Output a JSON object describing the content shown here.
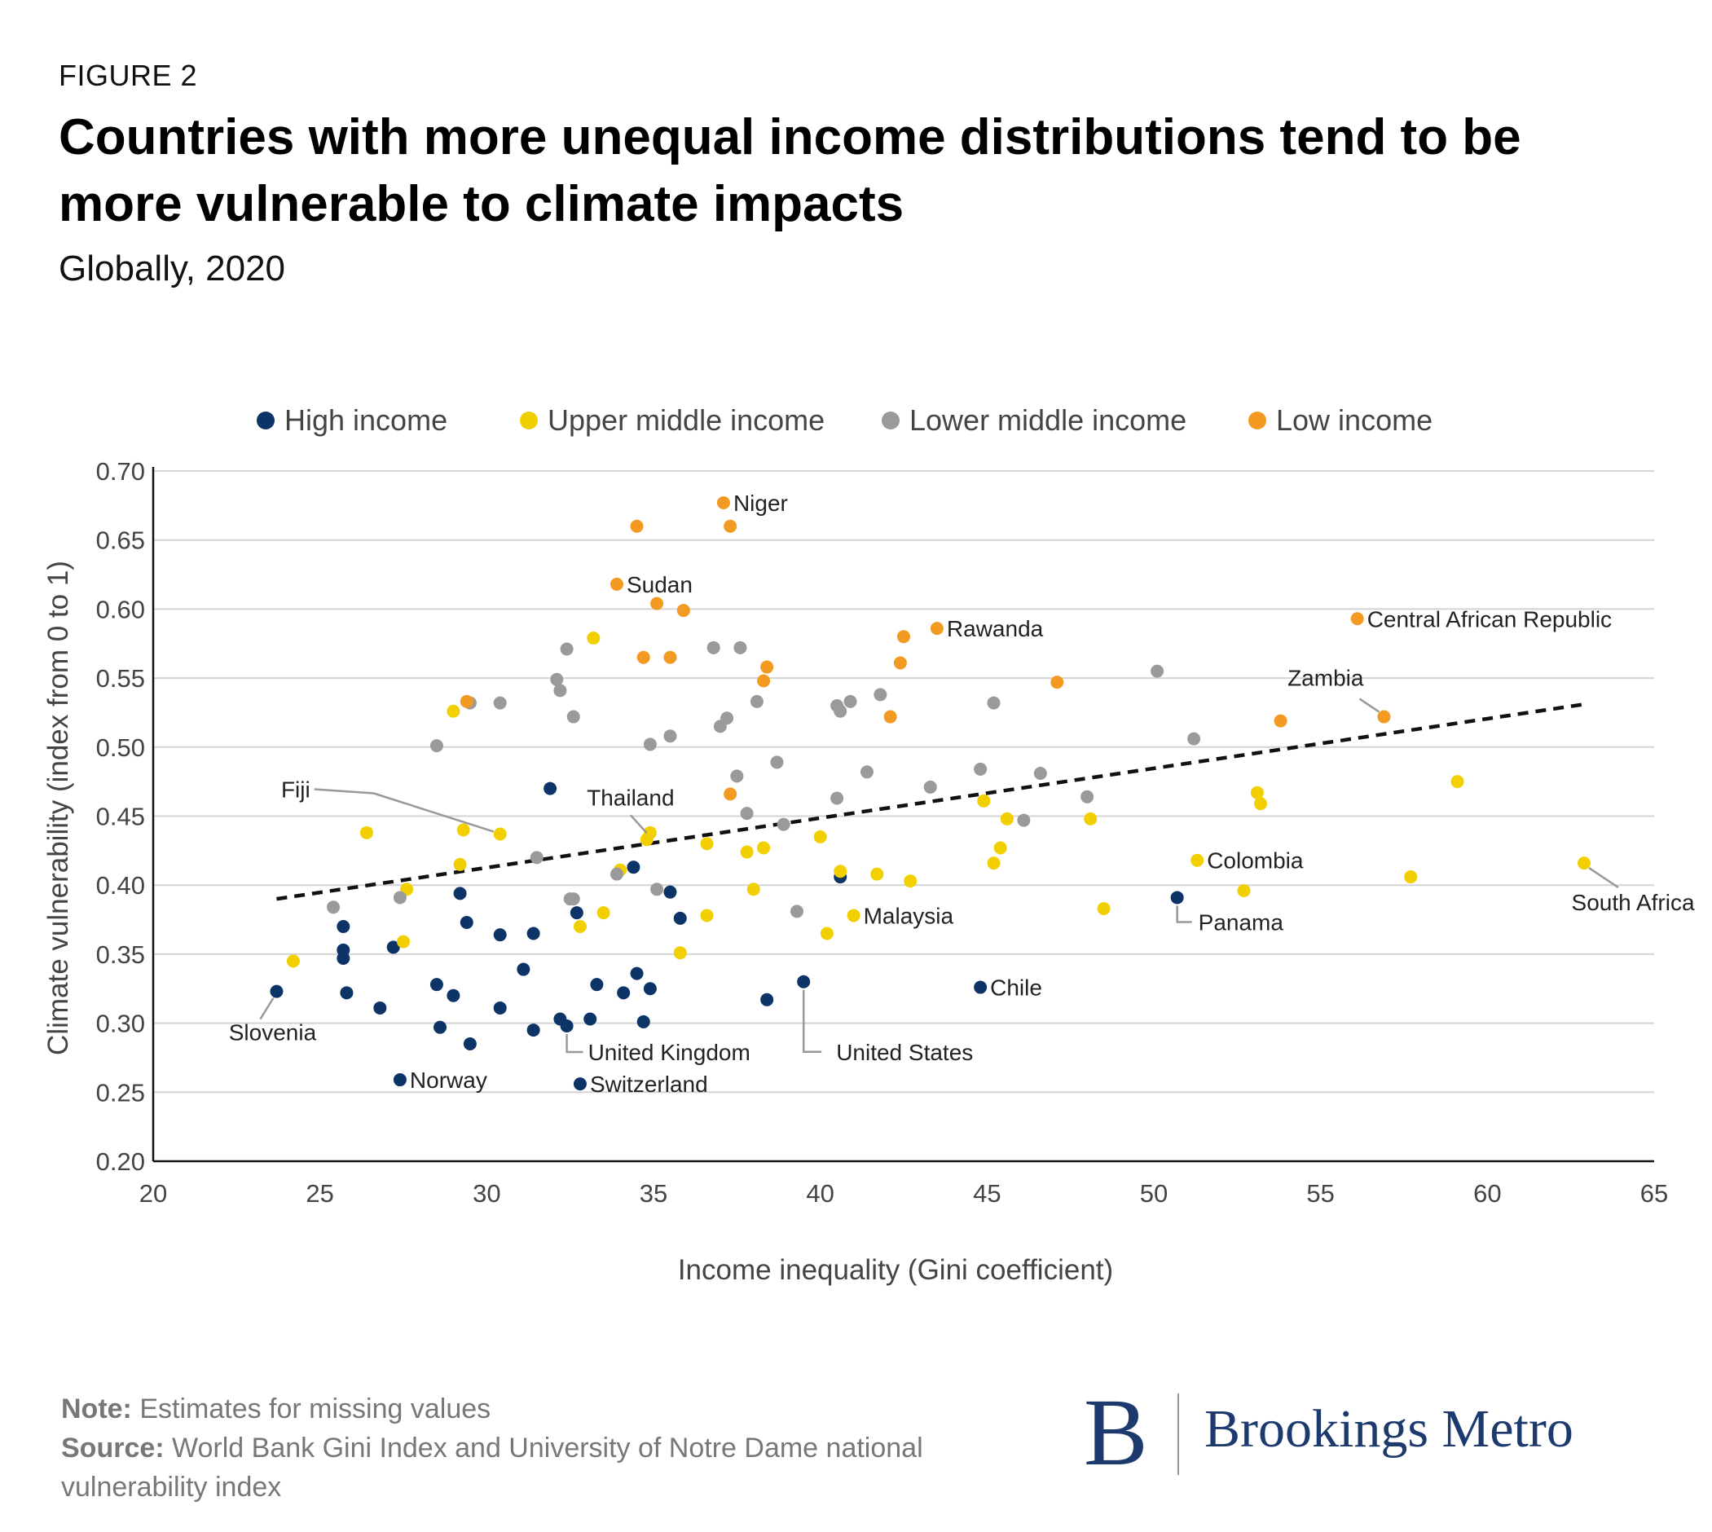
{
  "header": {
    "figure_label": "FIGURE 2",
    "title": "Countries with more unequal income distributions tend to be more vulnerable to climate impacts",
    "subtitle": "Globally, 2020"
  },
  "footer": {
    "note_label": "Note:",
    "note_text": "Estimates for missing values",
    "source_label": "Source:",
    "source_text": "World Bank Gini Index and University of Notre Dame national vulnerability index"
  },
  "brand": {
    "logo_letter": "B",
    "name": "Brookings Metro",
    "color": "#1d3a6e"
  },
  "chart_data": {
    "type": "scatter",
    "xlabel": "Income inequality (Gini coefficient)",
    "ylabel": "Climate vulnerability (index from 0 to 1)",
    "xlim": [
      20,
      65
    ],
    "ylim": [
      0.2,
      0.7
    ],
    "x_ticks": [
      20,
      25,
      30,
      35,
      40,
      45,
      50,
      55,
      60,
      65
    ],
    "y_ticks": [
      0.2,
      0.25,
      0.3,
      0.35,
      0.4,
      0.45,
      0.5,
      0.55,
      0.6,
      0.65,
      0.7
    ],
    "y_tick_labels": [
      "0.20",
      "0.25",
      "0.30",
      "0.35",
      "0.40",
      "0.45",
      "0.50",
      "0.55",
      "0.60",
      "0.65",
      "0.70"
    ],
    "grid": "horizontal",
    "legend_position": "top",
    "trendline": {
      "style": "dashed",
      "from": [
        23.7,
        0.39
      ],
      "to": [
        62.9,
        0.531
      ]
    },
    "series": [
      {
        "name": "High income",
        "color": "#0d3467",
        "points": [
          [
            23.7,
            0.323
          ],
          [
            25.7,
            0.37
          ],
          [
            25.7,
            0.353
          ],
          [
            25.7,
            0.347
          ],
          [
            25.8,
            0.322
          ],
          [
            26.8,
            0.311
          ],
          [
            27.2,
            0.355
          ],
          [
            27.4,
            0.259
          ],
          [
            28.5,
            0.328
          ],
          [
            28.6,
            0.297
          ],
          [
            29.0,
            0.32
          ],
          [
            29.2,
            0.394
          ],
          [
            29.4,
            0.373
          ],
          [
            29.5,
            0.285
          ],
          [
            30.4,
            0.364
          ],
          [
            30.4,
            0.311
          ],
          [
            31.1,
            0.339
          ],
          [
            31.4,
            0.365
          ],
          [
            31.4,
            0.295
          ],
          [
            31.9,
            0.47
          ],
          [
            32.2,
            0.303
          ],
          [
            32.4,
            0.298
          ],
          [
            32.7,
            0.38
          ],
          [
            32.8,
            0.256
          ],
          [
            33.1,
            0.303
          ],
          [
            33.3,
            0.328
          ],
          [
            34.1,
            0.322
          ],
          [
            34.4,
            0.413
          ],
          [
            34.5,
            0.336
          ],
          [
            34.7,
            0.301
          ],
          [
            34.9,
            0.325
          ],
          [
            35.5,
            0.395
          ],
          [
            35.8,
            0.376
          ],
          [
            38.4,
            0.317
          ],
          [
            39.5,
            0.33
          ],
          [
            40.6,
            0.406
          ],
          [
            44.8,
            0.326
          ],
          [
            50.7,
            0.391
          ]
        ]
      },
      {
        "name": "Upper middle income",
        "color": "#f2d000",
        "points": [
          [
            24.2,
            0.345
          ],
          [
            26.4,
            0.438
          ],
          [
            27.5,
            0.359
          ],
          [
            27.6,
            0.397
          ],
          [
            29.0,
            0.526
          ],
          [
            29.2,
            0.415
          ],
          [
            29.3,
            0.44
          ],
          [
            30.4,
            0.437
          ],
          [
            32.8,
            0.37
          ],
          [
            33.2,
            0.579
          ],
          [
            33.5,
            0.38
          ],
          [
            34.0,
            0.411
          ],
          [
            34.8,
            0.433
          ],
          [
            34.9,
            0.438
          ],
          [
            35.8,
            0.351
          ],
          [
            36.6,
            0.378
          ],
          [
            36.6,
            0.43
          ],
          [
            37.8,
            0.424
          ],
          [
            38.0,
            0.397
          ],
          [
            38.3,
            0.427
          ],
          [
            40.0,
            0.435
          ],
          [
            40.2,
            0.365
          ],
          [
            40.6,
            0.41
          ],
          [
            41.0,
            0.378
          ],
          [
            41.7,
            0.408
          ],
          [
            42.7,
            0.403
          ],
          [
            44.9,
            0.461
          ],
          [
            45.2,
            0.416
          ],
          [
            45.4,
            0.427
          ],
          [
            45.6,
            0.448
          ],
          [
            48.1,
            0.448
          ],
          [
            48.5,
            0.383
          ],
          [
            51.3,
            0.418
          ],
          [
            52.7,
            0.396
          ],
          [
            53.1,
            0.467
          ],
          [
            53.2,
            0.459
          ],
          [
            57.7,
            0.406
          ],
          [
            59.1,
            0.475
          ],
          [
            62.9,
            0.416
          ]
        ]
      },
      {
        "name": "Lower middle income",
        "color": "#9a9a9a",
        "points": [
          [
            25.4,
            0.384
          ],
          [
            27.4,
            0.391
          ],
          [
            28.5,
            0.501
          ],
          [
            29.5,
            0.532
          ],
          [
            30.4,
            0.532
          ],
          [
            31.5,
            0.42
          ],
          [
            32.1,
            0.549
          ],
          [
            32.2,
            0.541
          ],
          [
            32.4,
            0.571
          ],
          [
            32.5,
            0.39
          ],
          [
            32.6,
            0.39
          ],
          [
            32.6,
            0.522
          ],
          [
            33.9,
            0.408
          ],
          [
            34.9,
            0.502
          ],
          [
            35.1,
            0.397
          ],
          [
            35.5,
            0.508
          ],
          [
            36.8,
            0.572
          ],
          [
            37.0,
            0.515
          ],
          [
            37.2,
            0.521
          ],
          [
            37.5,
            0.479
          ],
          [
            37.6,
            0.572
          ],
          [
            37.8,
            0.452
          ],
          [
            38.1,
            0.533
          ],
          [
            38.7,
            0.489
          ],
          [
            38.9,
            0.444
          ],
          [
            39.3,
            0.381
          ],
          [
            40.5,
            0.463
          ],
          [
            40.5,
            0.53
          ],
          [
            40.6,
            0.526
          ],
          [
            40.9,
            0.533
          ],
          [
            41.4,
            0.482
          ],
          [
            41.8,
            0.538
          ],
          [
            43.3,
            0.471
          ],
          [
            44.8,
            0.484
          ],
          [
            45.2,
            0.532
          ],
          [
            46.1,
            0.447
          ],
          [
            46.6,
            0.481
          ],
          [
            48.0,
            0.464
          ],
          [
            50.1,
            0.555
          ],
          [
            51.2,
            0.506
          ]
        ]
      },
      {
        "name": "Low income",
        "color": "#f39a22",
        "points": [
          [
            29.4,
            0.533
          ],
          [
            33.9,
            0.618
          ],
          [
            34.5,
            0.66
          ],
          [
            34.7,
            0.565
          ],
          [
            35.1,
            0.604
          ],
          [
            35.5,
            0.565
          ],
          [
            35.9,
            0.599
          ],
          [
            37.1,
            0.677
          ],
          [
            37.3,
            0.466
          ],
          [
            37.3,
            0.66
          ],
          [
            38.3,
            0.548
          ],
          [
            38.4,
            0.558
          ],
          [
            42.1,
            0.522
          ],
          [
            42.4,
            0.561
          ],
          [
            42.5,
            0.58
          ],
          [
            43.5,
            0.586
          ],
          [
            47.1,
            0.547
          ],
          [
            53.8,
            0.519
          ],
          [
            56.1,
            0.593
          ],
          [
            56.9,
            0.522
          ]
        ]
      }
    ],
    "annotations": [
      {
        "text": "Niger",
        "x": 37.1,
        "y": 0.677,
        "placement": "right"
      },
      {
        "text": "Sudan",
        "x": 33.9,
        "y": 0.618,
        "placement": "right"
      },
      {
        "text": "Rawanda",
        "x": 43.5,
        "y": 0.586,
        "placement": "right"
      },
      {
        "text": "Central African Republic",
        "x": 56.1,
        "y": 0.593,
        "placement": "right"
      },
      {
        "text": "Zambia",
        "x": 56.9,
        "y": 0.522,
        "placement": "above-left",
        "leader": true
      },
      {
        "text": "Fiji",
        "x": 30.4,
        "y": 0.437,
        "placement": "upper-left",
        "leader": true
      },
      {
        "text": "Thailand",
        "x": 34.8,
        "y": 0.433,
        "placement": "above",
        "leader": true
      },
      {
        "text": "Colombia",
        "x": 51.3,
        "y": 0.418,
        "placement": "right"
      },
      {
        "text": "Malaysia",
        "x": 41.0,
        "y": 0.378,
        "placement": "right"
      },
      {
        "text": "South Africa",
        "x": 62.9,
        "y": 0.416,
        "placement": "below",
        "leader": true
      },
      {
        "text": "Panama",
        "x": 50.7,
        "y": 0.391,
        "placement": "below-right",
        "leader": true
      },
      {
        "text": "Chile",
        "x": 44.8,
        "y": 0.326,
        "placement": "right"
      },
      {
        "text": "Slovenia",
        "x": 23.7,
        "y": 0.323,
        "placement": "below",
        "leader": true
      },
      {
        "text": "United Kingdom",
        "x": 32.4,
        "y": 0.298,
        "placement": "below-right",
        "leader": true
      },
      {
        "text": "United States",
        "x": 39.5,
        "y": 0.33,
        "placement": "below-right",
        "leader": true
      },
      {
        "text": "Norway",
        "x": 27.4,
        "y": 0.259,
        "placement": "right"
      },
      {
        "text": "Switzerland",
        "x": 32.8,
        "y": 0.256,
        "placement": "right"
      }
    ]
  }
}
